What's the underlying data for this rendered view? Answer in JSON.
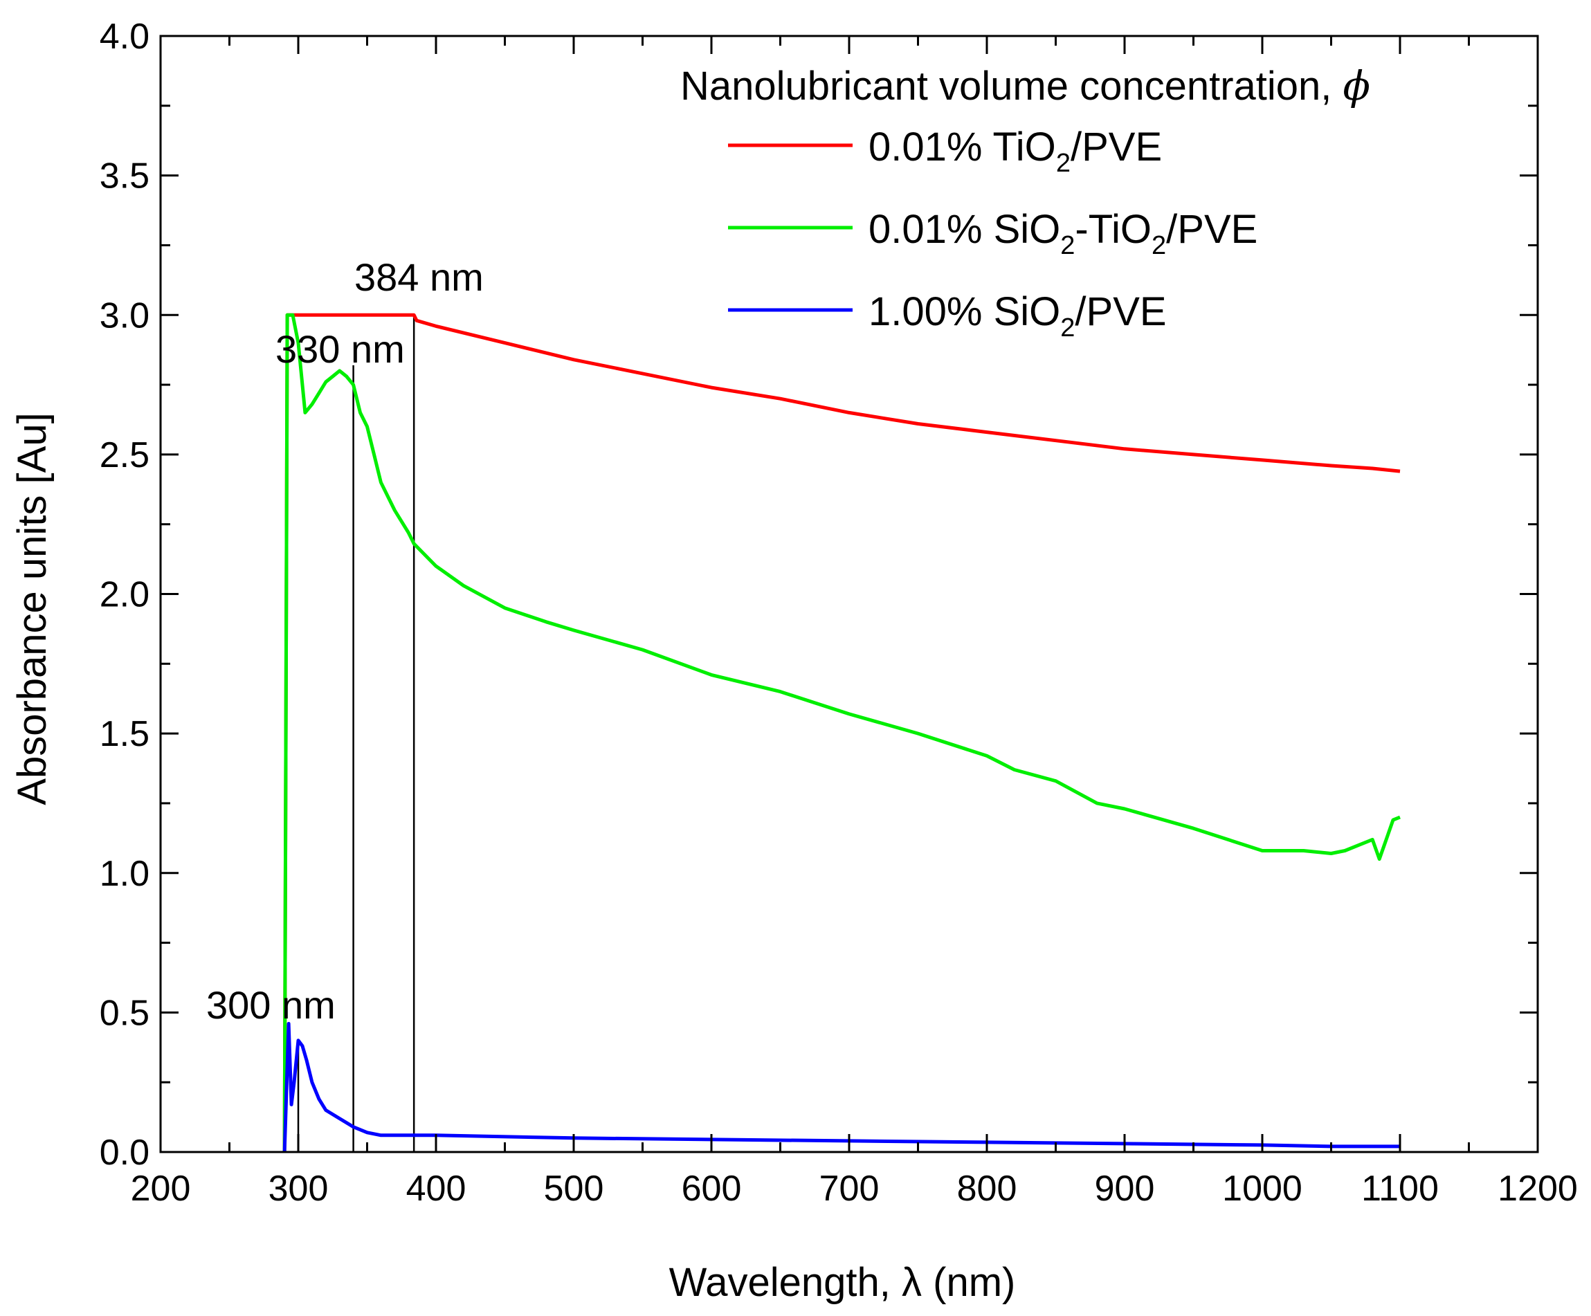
{
  "chart_data": {
    "type": "line",
    "xlabel": "Wavelength, λ (nm)",
    "ylabel": "Absorbance units [Au]",
    "xlim": [
      200,
      1200
    ],
    "ylim": [
      0.0,
      4.0
    ],
    "x_ticks": [
      "200",
      "300",
      "400",
      "500",
      "600",
      "700",
      "800",
      "900",
      "1000",
      "1100",
      "1200"
    ],
    "y_ticks": [
      "0.0",
      "0.5",
      "1.0",
      "1.5",
      "2.0",
      "2.5",
      "3.0",
      "3.5",
      "4.0"
    ],
    "legend": {
      "title": "Nanolubricant volume concentration, ",
      "title_symbol": "ϕ",
      "placement": "top-right",
      "entries": [
        {
          "prefix": "0.01% TiO",
          "sub": "2",
          "suffix": "/PVE",
          "color": "#ff0000"
        },
        {
          "prefix": "0.01% SiO",
          "sub": "2",
          "middle": "-TiO",
          "sub2": "2",
          "suffix": "/PVE",
          "color": "#00ee00"
        },
        {
          "prefix": "1.00% SiO",
          "sub": "2",
          "suffix": "/PVE",
          "color": "#0000ff"
        }
      ]
    },
    "annotations": [
      {
        "text": "384 nm",
        "x": 384
      },
      {
        "text": "330 nm",
        "x": 340
      },
      {
        "text": "300 nm",
        "x": 300
      }
    ],
    "series": [
      {
        "name": "0.01% TiO2/PVE",
        "color": "#ff0000",
        "x": [
          290,
          292,
          300,
          320,
          340,
          360,
          384,
          386,
          400,
          450,
          500,
          550,
          600,
          650,
          700,
          750,
          800,
          850,
          900,
          950,
          1000,
          1050,
          1080,
          1100
        ],
        "y": [
          0.0,
          3.0,
          3.0,
          3.0,
          3.0,
          3.0,
          3.0,
          2.98,
          2.96,
          2.9,
          2.84,
          2.79,
          2.74,
          2.7,
          2.65,
          2.61,
          2.58,
          2.55,
          2.52,
          2.5,
          2.48,
          2.46,
          2.45,
          2.44
        ]
      },
      {
        "name": "0.01% SiO2-TiO2/PVE",
        "color": "#00ee00",
        "x": [
          290,
          292,
          296,
          300,
          305,
          310,
          315,
          320,
          325,
          330,
          335,
          340,
          345,
          350,
          355,
          360,
          370,
          380,
          384,
          390,
          400,
          420,
          450,
          480,
          500,
          550,
          600,
          650,
          700,
          750,
          800,
          820,
          850,
          880,
          900,
          950,
          1000,
          1030,
          1050,
          1060,
          1070,
          1080,
          1085,
          1090,
          1095,
          1100
        ],
        "y": [
          0.0,
          3.0,
          3.0,
          2.9,
          2.65,
          2.68,
          2.72,
          2.76,
          2.78,
          2.8,
          2.78,
          2.75,
          2.65,
          2.6,
          2.5,
          2.4,
          2.3,
          2.22,
          2.18,
          2.15,
          2.1,
          2.03,
          1.95,
          1.9,
          1.87,
          1.8,
          1.71,
          1.65,
          1.57,
          1.5,
          1.42,
          1.37,
          1.33,
          1.25,
          1.23,
          1.16,
          1.08,
          1.08,
          1.07,
          1.08,
          1.1,
          1.12,
          1.05,
          1.12,
          1.19,
          1.2
        ]
      },
      {
        "name": "1.00% SiO2/PVE",
        "color": "#0000ff",
        "x": [
          290,
          293,
          295,
          297,
          300,
          303,
          306,
          310,
          315,
          320,
          330,
          340,
          350,
          360,
          380,
          400,
          500,
          600,
          700,
          800,
          900,
          1000,
          1050,
          1100
        ],
        "y": [
          0.0,
          0.46,
          0.17,
          0.25,
          0.4,
          0.38,
          0.33,
          0.25,
          0.19,
          0.15,
          0.12,
          0.09,
          0.07,
          0.06,
          0.06,
          0.06,
          0.05,
          0.045,
          0.04,
          0.035,
          0.03,
          0.025,
          0.02,
          0.02
        ]
      }
    ]
  }
}
